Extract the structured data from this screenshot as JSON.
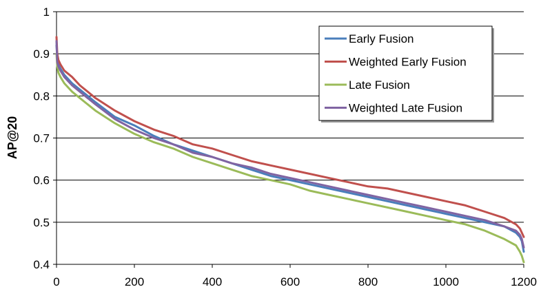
{
  "chart_data": {
    "type": "line",
    "title": "",
    "xlabel": "",
    "ylabel": "AP@20",
    "xlim": [
      0,
      1200
    ],
    "ylim": [
      0.4,
      1
    ],
    "x_ticks": [
      "0",
      "200",
      "400",
      "600",
      "800",
      "1000",
      "1200"
    ],
    "y_ticks": [
      "0.4",
      "0.5",
      "0.6",
      "0.7",
      "0.8",
      "0.9",
      "1"
    ],
    "grid": "horizontal",
    "legend_position": "top-right",
    "series": [
      {
        "name": "Early Fusion",
        "color": "#4a7ebb",
        "x": [
          0,
          2,
          5,
          10,
          20,
          40,
          60,
          80,
          100,
          150,
          200,
          250,
          300,
          350,
          400,
          450,
          500,
          550,
          600,
          650,
          700,
          750,
          800,
          850,
          900,
          950,
          1000,
          1050,
          1100,
          1150,
          1180,
          1190,
          1195,
          1200
        ],
        "y": [
          0.92,
          0.89,
          0.875,
          0.865,
          0.85,
          0.83,
          0.815,
          0.8,
          0.785,
          0.75,
          0.73,
          0.705,
          0.685,
          0.67,
          0.655,
          0.64,
          0.625,
          0.61,
          0.6,
          0.59,
          0.58,
          0.57,
          0.56,
          0.55,
          0.54,
          0.53,
          0.52,
          0.51,
          0.5,
          0.49,
          0.475,
          0.465,
          0.455,
          0.43
        ]
      },
      {
        "name": "Weighted Early Fusion",
        "color": "#c0504d",
        "x": [
          0,
          2,
          5,
          10,
          20,
          40,
          60,
          80,
          100,
          150,
          200,
          250,
          300,
          350,
          400,
          450,
          500,
          550,
          600,
          650,
          700,
          750,
          800,
          850,
          900,
          950,
          1000,
          1050,
          1100,
          1150,
          1180,
          1190,
          1195,
          1200
        ],
        "y": [
          0.94,
          0.9,
          0.885,
          0.875,
          0.86,
          0.845,
          0.825,
          0.81,
          0.795,
          0.765,
          0.74,
          0.72,
          0.705,
          0.685,
          0.675,
          0.66,
          0.645,
          0.635,
          0.625,
          0.615,
          0.605,
          0.595,
          0.585,
          0.58,
          0.57,
          0.56,
          0.55,
          0.54,
          0.525,
          0.51,
          0.495,
          0.485,
          0.475,
          0.465
        ]
      },
      {
        "name": "Late Fusion",
        "color": "#9bbb59",
        "x": [
          0,
          2,
          5,
          10,
          20,
          40,
          60,
          80,
          100,
          150,
          200,
          250,
          300,
          350,
          400,
          450,
          500,
          550,
          600,
          650,
          700,
          750,
          800,
          850,
          900,
          950,
          1000,
          1050,
          1100,
          1150,
          1180,
          1190,
          1195,
          1200
        ],
        "y": [
          0.9,
          0.87,
          0.855,
          0.845,
          0.83,
          0.81,
          0.795,
          0.78,
          0.765,
          0.735,
          0.71,
          0.69,
          0.675,
          0.655,
          0.64,
          0.625,
          0.61,
          0.6,
          0.59,
          0.575,
          0.565,
          0.555,
          0.545,
          0.535,
          0.525,
          0.515,
          0.505,
          0.495,
          0.48,
          0.46,
          0.445,
          0.43,
          0.42,
          0.405
        ]
      },
      {
        "name": "Weighted Late Fusion",
        "color": "#8064a2",
        "x": [
          0,
          2,
          5,
          10,
          20,
          40,
          60,
          80,
          100,
          150,
          200,
          250,
          300,
          350,
          400,
          450,
          500,
          550,
          600,
          650,
          700,
          750,
          800,
          850,
          900,
          950,
          1000,
          1050,
          1100,
          1150,
          1180,
          1190,
          1195,
          1200
        ],
        "y": [
          0.93,
          0.88,
          0.87,
          0.86,
          0.845,
          0.825,
          0.81,
          0.795,
          0.78,
          0.745,
          0.72,
          0.7,
          0.685,
          0.665,
          0.655,
          0.64,
          0.63,
          0.615,
          0.605,
          0.595,
          0.585,
          0.575,
          0.565,
          0.555,
          0.545,
          0.535,
          0.525,
          0.515,
          0.505,
          0.49,
          0.48,
          0.47,
          0.46,
          0.44
        ]
      }
    ]
  }
}
